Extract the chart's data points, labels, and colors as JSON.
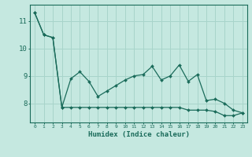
{
  "xlabel": "Humidex (Indice chaleur)",
  "background_color": "#c5e8e0",
  "line_color": "#1a6b5a",
  "grid_color": "#a8d4ca",
  "x_values": [
    0,
    1,
    2,
    3,
    4,
    5,
    6,
    7,
    8,
    9,
    10,
    11,
    12,
    13,
    14,
    15,
    16,
    17,
    18,
    19,
    20,
    21,
    22,
    23
  ],
  "line1_y": [
    11.3,
    10.5,
    10.4,
    7.85,
    8.9,
    9.15,
    8.8,
    8.25,
    8.45,
    8.65,
    8.85,
    9.0,
    9.05,
    9.35,
    8.85,
    9.0,
    9.4,
    8.8,
    9.05,
    8.1,
    8.15,
    8.0,
    7.75,
    7.65
  ],
  "line2_y": [
    11.3,
    10.5,
    10.4,
    7.85,
    7.85,
    7.85,
    7.85,
    7.85,
    7.85,
    7.85,
    7.85,
    7.85,
    7.85,
    7.85,
    7.85,
    7.85,
    7.85,
    7.75,
    7.75,
    7.75,
    7.7,
    7.55,
    7.55,
    7.65
  ],
  "ylim": [
    7.3,
    11.6
  ],
  "yticks": [
    8,
    9,
    10,
    11
  ],
  "xlim": [
    -0.5,
    23.5
  ]
}
